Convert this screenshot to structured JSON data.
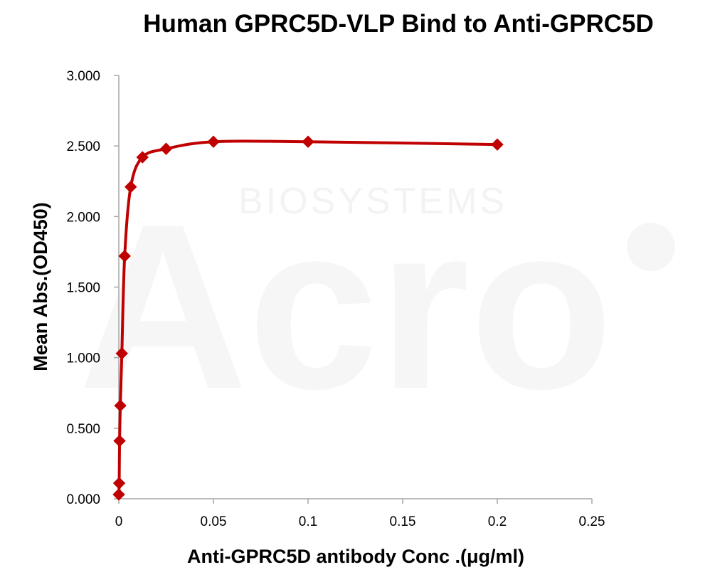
{
  "chart_data": {
    "type": "line",
    "title": "Human GPRC5D-VLP Bind to Anti-GPRC5D",
    "xlabel": "Anti-GPRC5D antibody Conc .(μg/ml)",
    "ylabel": "Mean Abs.(OD450)",
    "xlim": [
      0,
      0.25
    ],
    "ylim": [
      0,
      3.0
    ],
    "x_ticks": [
      "0",
      "0.05",
      "0.1",
      "0.15",
      "0.2",
      "0.25"
    ],
    "x_tick_values": [
      0,
      0.05,
      0.1,
      0.15,
      0.2,
      0.25
    ],
    "y_ticks": [
      "0.000",
      "0.500",
      "1.000",
      "1.500",
      "2.000",
      "2.500",
      "3.000"
    ],
    "y_tick_values": [
      0,
      0.5,
      1.0,
      1.5,
      2.0,
      2.5,
      3.0
    ],
    "grid": false,
    "legend": "none",
    "marker": "diamond",
    "series": [
      {
        "color": "#c00000",
        "x": [
          0.0,
          0.0002,
          0.0004,
          0.0008,
          0.0016,
          0.0031,
          0.0063,
          0.0125,
          0.025,
          0.05,
          0.1,
          0.2
        ],
        "y": [
          0.03,
          0.11,
          0.41,
          0.66,
          1.03,
          1.72,
          2.21,
          2.42,
          2.48,
          2.53,
          2.53,
          2.51
        ]
      }
    ],
    "watermark": [
      "BIOSYSTEMS",
      "Acro"
    ]
  }
}
